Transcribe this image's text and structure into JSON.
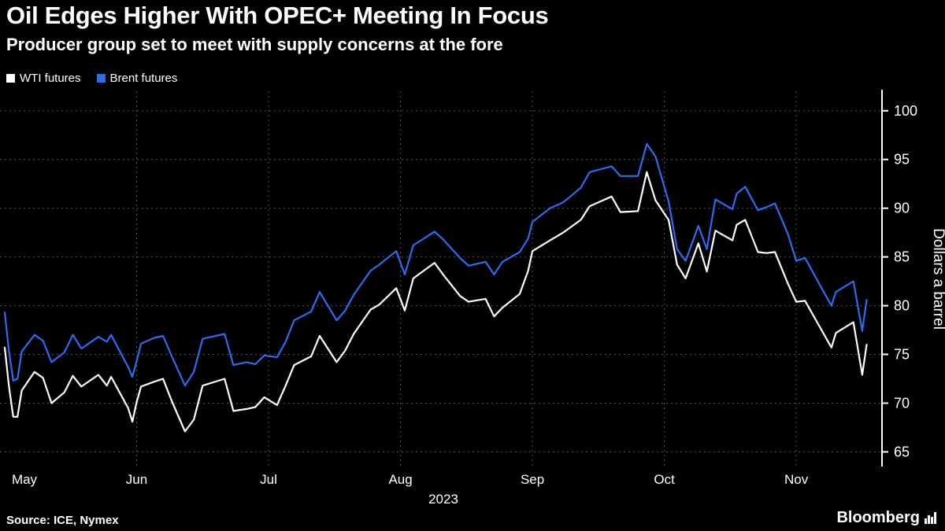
{
  "header": {
    "title": "Oil Edges Higher With OPEC+ Meeting In Focus",
    "subtitle": "Producer group set to meet with supply concerns at the fore"
  },
  "legend": [
    {
      "label": "WTI futures",
      "color": "#ffffff"
    },
    {
      "label": "Brent futures",
      "color": "#2b6cf2"
    }
  ],
  "chart_data": {
    "type": "line",
    "title": "Oil Edges Higher With OPEC+ Meeting In Focus",
    "ylabel": "Dollars a barrel",
    "year_label": "2023",
    "xtick_labels": [
      "May",
      "Jun",
      "Jul",
      "Aug",
      "Sep",
      "Oct",
      "Nov"
    ],
    "yticks": [
      65,
      70,
      75,
      80,
      85,
      90,
      95,
      100
    ],
    "ylim": [
      63.5,
      102
    ],
    "grid": "dashed",
    "legend_position": "top-left",
    "x": [
      "2023-05-01",
      "2023-05-02",
      "2023-05-03",
      "2023-05-04",
      "2023-05-05",
      "2023-05-08",
      "2023-05-10",
      "2023-05-12",
      "2023-05-15",
      "2023-05-17",
      "2023-05-19",
      "2023-05-23",
      "2023-05-25",
      "2023-05-26",
      "2023-05-30",
      "2023-05-31",
      "2023-06-01",
      "2023-06-02",
      "2023-06-05",
      "2023-06-07",
      "2023-06-09",
      "2023-06-12",
      "2023-06-14",
      "2023-06-16",
      "2023-06-21",
      "2023-06-23",
      "2023-06-26",
      "2023-06-28",
      "2023-06-30",
      "2023-07-03",
      "2023-07-05",
      "2023-07-07",
      "2023-07-11",
      "2023-07-13",
      "2023-07-17",
      "2023-07-19",
      "2023-07-21",
      "2023-07-25",
      "2023-07-27",
      "2023-07-31",
      "2023-08-02",
      "2023-08-04",
      "2023-08-09",
      "2023-08-11",
      "2023-08-15",
      "2023-08-17",
      "2023-08-21",
      "2023-08-23",
      "2023-08-25",
      "2023-08-29",
      "2023-08-31",
      "2023-09-01",
      "2023-09-05",
      "2023-09-08",
      "2023-09-12",
      "2023-09-14",
      "2023-09-19",
      "2023-09-21",
      "2023-09-25",
      "2023-09-27",
      "2023-09-29",
      "2023-10-02",
      "2023-10-04",
      "2023-10-06",
      "2023-10-09",
      "2023-10-11",
      "2023-10-13",
      "2023-10-17",
      "2023-10-18",
      "2023-10-20",
      "2023-10-23",
      "2023-10-25",
      "2023-10-27",
      "2023-10-30",
      "2023-11-01",
      "2023-11-03",
      "2023-11-07",
      "2023-11-09",
      "2023-11-10",
      "2023-11-14",
      "2023-11-16",
      "2023-11-17"
    ],
    "series": [
      {
        "name": "WTI futures",
        "color": "#ffffff",
        "values": [
          75.7,
          71.7,
          68.6,
          68.6,
          71.3,
          73.2,
          72.6,
          70.0,
          71.1,
          72.8,
          71.7,
          72.9,
          71.8,
          72.7,
          69.5,
          68.1,
          70.1,
          71.7,
          72.2,
          72.5,
          70.2,
          67.1,
          68.3,
          71.8,
          72.5,
          69.2,
          69.4,
          69.6,
          70.6,
          69.8,
          71.8,
          73.9,
          74.8,
          76.9,
          74.2,
          75.4,
          77.1,
          79.6,
          80.1,
          81.8,
          79.5,
          82.8,
          84.4,
          83.2,
          81.0,
          80.4,
          80.7,
          78.9,
          79.8,
          81.2,
          83.6,
          85.6,
          86.7,
          87.5,
          88.8,
          90.2,
          91.2,
          89.6,
          89.7,
          93.7,
          90.8,
          88.8,
          84.2,
          82.8,
          86.4,
          83.5,
          87.7,
          86.7,
          88.3,
          88.8,
          85.5,
          85.4,
          85.5,
          82.3,
          80.4,
          80.5,
          77.3,
          75.7,
          77.2,
          78.3,
          72.9,
          76.0
        ]
      },
      {
        "name": "Brent futures",
        "color": "#2b6cf2",
        "values": [
          79.3,
          75.3,
          72.3,
          72.5,
          75.3,
          77.0,
          76.4,
          74.2,
          75.2,
          77.0,
          75.6,
          76.8,
          76.3,
          77.0,
          73.7,
          72.7,
          74.3,
          76.1,
          76.7,
          76.9,
          74.8,
          71.8,
          73.2,
          76.6,
          77.1,
          73.9,
          74.2,
          74.0,
          74.9,
          74.7,
          76.3,
          78.5,
          79.4,
          81.4,
          78.5,
          79.5,
          81.1,
          83.6,
          84.2,
          85.6,
          83.2,
          86.2,
          87.6,
          86.8,
          84.9,
          84.1,
          84.5,
          83.2,
          84.5,
          85.5,
          86.9,
          88.6,
          90.0,
          90.6,
          92.1,
          93.7,
          94.3,
          93.3,
          93.3,
          96.6,
          95.3,
          90.7,
          85.8,
          84.6,
          88.2,
          85.8,
          90.9,
          89.9,
          91.5,
          92.2,
          89.8,
          90.1,
          90.5,
          87.4,
          84.6,
          84.9,
          81.6,
          80.0,
          81.4,
          82.5,
          77.4,
          80.6
        ]
      }
    ]
  },
  "footer": {
    "source": "Source: ICE, Nymex",
    "brand": "Bloomberg"
  }
}
